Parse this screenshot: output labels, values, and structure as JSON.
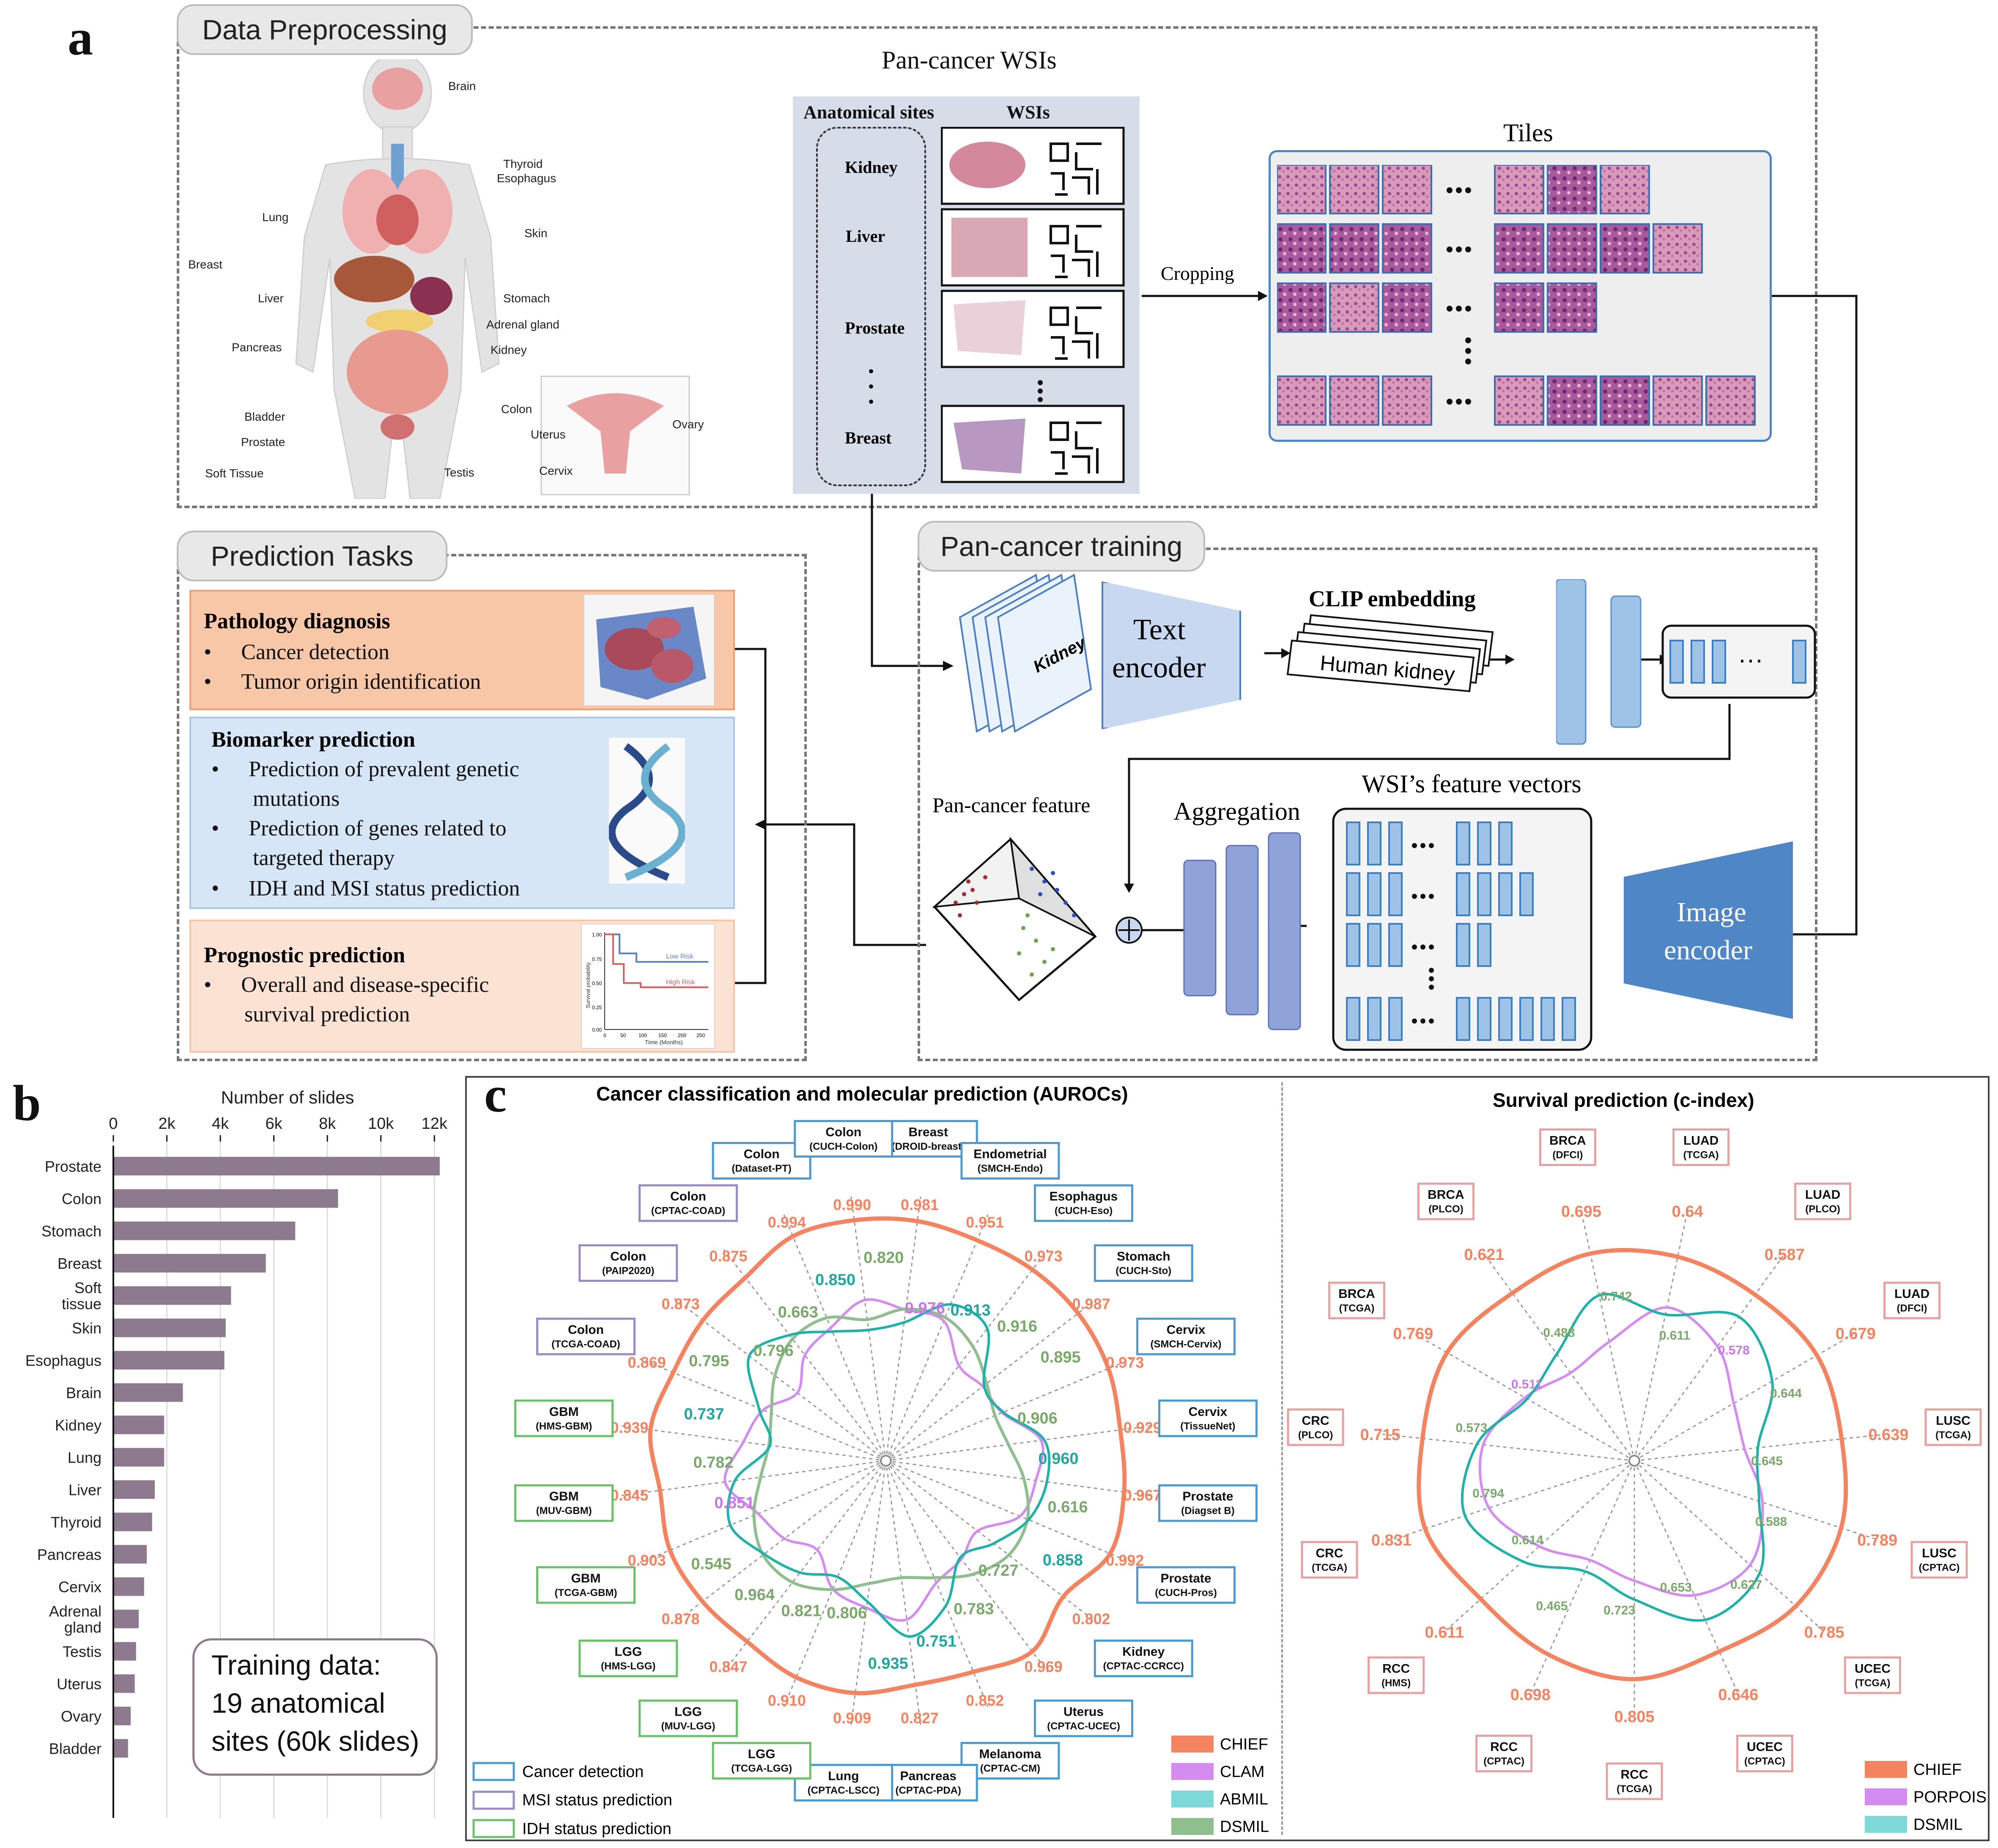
{
  "panel_a": {
    "letter": "a",
    "preprocessing": {
      "tab": "Data Preprocessing",
      "body_labels": [
        "Brain",
        "Thyroid",
        "Esophagus",
        "Lung",
        "Skin",
        "Breast",
        "Stomach",
        "Liver",
        "Adrenal gland",
        "Pancreas",
        "Kidney",
        "Colon",
        "Bladder",
        "Prostate",
        "Testis",
        "Soft Tissue",
        "Uterus",
        "Cervix",
        "Ovary"
      ],
      "pan_cancer_title": "Pan-cancer WSIs",
      "anatomical_sites_header": "Anatomical sites",
      "wsis_header": "WSIs",
      "sites": [
        "Kidney",
        "Liver",
        "Prostate",
        "Breast"
      ],
      "cropping": "Cropping",
      "tiles": "Tiles"
    },
    "prediction": {
      "tab": "Prediction Tasks",
      "pathology": {
        "title": "Pathology diagnosis",
        "items": [
          "Cancer detection",
          "Tumor origin identification"
        ]
      },
      "biomarker": {
        "title": "Biomarker prediction",
        "items": [
          "Prediction of prevalent genetic",
          "mutations",
          "Prediction of genes related to",
          "targeted therapy",
          "IDH and MSI status prediction"
        ]
      },
      "prognostic": {
        "title": "Prognostic prediction",
        "items": [
          "Overall and disease-specific",
          "survival prediction"
        ]
      },
      "km": {
        "low": "Low Risk",
        "high": "High Risk",
        "ylabel": "Survival probability",
        "xlabel": "Time (Months)",
        "yticks": [
          "1.00",
          "0.75",
          "0.50",
          "0.25",
          "0.00"
        ],
        "xticks": [
          "0",
          "50",
          "100",
          "150",
          "200",
          "250"
        ]
      }
    },
    "training": {
      "tab": "Pan-cancer training",
      "kidney_card": "Kidney",
      "text_encoder": [
        "Text",
        "encoder"
      ],
      "clip": "CLIP embedding",
      "human_kidney": "Human kidney",
      "ellipsis": "···",
      "pan_feature": "Pan-cancer feature",
      "aggregation": "Aggregation",
      "wsi_features": "WSI’s feature vectors",
      "image_encoder": [
        "Image",
        "encoder"
      ]
    }
  },
  "panel_b": {
    "letter": "b",
    "chart_data": {
      "type": "bar",
      "orientation": "horizontal",
      "title": "Number of slides",
      "categories": [
        "Prostate",
        "Colon",
        "Stomach",
        "Breast",
        "Soft tissue",
        "Skin",
        "Esophagus",
        "Brain",
        "Kidney",
        "Lung",
        "Liver",
        "Thyroid",
        "Pancreas",
        "Cervix",
        "Adrenal gland",
        "Testis",
        "Uterus",
        "Ovary",
        "Bladder"
      ],
      "values": [
        12200,
        8400,
        6800,
        5700,
        4400,
        4200,
        4150,
        2600,
        1900,
        1900,
        1550,
        1450,
        1250,
        1150,
        950,
        850,
        800,
        650,
        550
      ],
      "xticks": [
        "0",
        "2k",
        "4k",
        "6k",
        "8k",
        "10k",
        "12k"
      ],
      "xlim": [
        0,
        12000
      ],
      "color": "#8e7a8e",
      "note": [
        "Training data:",
        "19 anatomical",
        "sites (60k slides)"
      ]
    }
  },
  "panel_c": {
    "letter": "c",
    "left_title": "Cancer classification and molecular prediction (AUROCs)",
    "right_title": "Survival prediction (c-index)",
    "auroc_chart": {
      "type": "radar",
      "datasets": [
        {
          "name": "Breast",
          "sub": "(DROID-breast)",
          "kind": "cancer",
          "chief": "0.981"
        },
        {
          "name": "Endometrial",
          "sub": "(SMCH-Endo)",
          "kind": "cancer",
          "chief": "0.951"
        },
        {
          "name": "Esophagus",
          "sub": "(CUCH-Eso)",
          "kind": "cancer",
          "chief": "0.973"
        },
        {
          "name": "Stomach",
          "sub": "(CUCH-Sto)",
          "kind": "cancer",
          "chief": "0.987"
        },
        {
          "name": "Cervix",
          "sub": "(SMCH-Cervix)",
          "kind": "cancer",
          "chief": "0.973"
        },
        {
          "name": "Cervix",
          "sub": "(TissueNet)",
          "kind": "cancer",
          "chief": "0.929"
        },
        {
          "name": "Prostate",
          "sub": "(Diagset B)",
          "kind": "cancer",
          "chief": "0.967"
        },
        {
          "name": "Prostate",
          "sub": "(CUCH-Pros)",
          "kind": "cancer",
          "chief": "0.992"
        },
        {
          "name": "Kidney",
          "sub": "(CPTAC-CCRCC)",
          "kind": "cancer",
          "chief": "0.802"
        },
        {
          "name": "Uterus",
          "sub": "(CPTAC-UCEC)",
          "kind": "cancer",
          "chief": "0.969"
        },
        {
          "name": "Melanoma",
          "sub": "(CPTAC-CM)",
          "kind": "cancer",
          "chief": "0.852"
        },
        {
          "name": "Pancreas",
          "sub": "(CPTAC-PDA)",
          "kind": "cancer",
          "chief": "0.827"
        },
        {
          "name": "Lung",
          "sub": "(CPTAC-LSCC)",
          "kind": "cancer",
          "chief": "0.909"
        },
        {
          "name": "LGG",
          "sub": "(TCGA-LGG)",
          "kind": "idh",
          "chief": "0.910"
        },
        {
          "name": "LGG",
          "sub": "(MUV-LGG)",
          "kind": "idh",
          "chief": "0.847"
        },
        {
          "name": "LGG",
          "sub": "(HMS-LGG)",
          "kind": "idh",
          "chief": "0.878"
        },
        {
          "name": "GBM",
          "sub": "(TCGA-GBM)",
          "kind": "idh",
          "chief": "0.903"
        },
        {
          "name": "GBM",
          "sub": "(MUV-GBM)",
          "kind": "idh",
          "chief": "0.845"
        },
        {
          "name": "GBM",
          "sub": "(HMS-GBM)",
          "kind": "idh",
          "chief": "0.939"
        },
        {
          "name": "Colon",
          "sub": "(TCGA-COAD)",
          "kind": "msi",
          "chief": "0.869"
        },
        {
          "name": "Colon",
          "sub": "(PAIP2020)",
          "kind": "msi",
          "chief": "0.873"
        },
        {
          "name": "Colon",
          "sub": "(CPTAC-COAD)",
          "kind": "msi",
          "chief": "0.875"
        },
        {
          "name": "Colon",
          "sub": "(Dataset-PT)",
          "kind": "cancer",
          "chief": "0.994"
        },
        {
          "name": "Colon",
          "sub": "(CUCH-Colon)",
          "kind": "cancer",
          "chief": "0.990"
        }
      ],
      "other_labels": [
        {
          "text": "0.976",
          "series": "CLAM"
        },
        {
          "text": "0.913",
          "series": "ABMIL"
        },
        {
          "text": "0.916",
          "series": "DSMIL"
        },
        {
          "text": "0.895",
          "series": "DSMIL"
        },
        {
          "text": "0.906",
          "series": "DSMIL"
        },
        {
          "text": "0.960",
          "series": "ABMIL"
        },
        {
          "text": "0.616",
          "series": "DSMIL"
        },
        {
          "text": "0.858",
          "series": "ABMIL"
        },
        {
          "text": "0.727",
          "series": "DSMIL"
        },
        {
          "text": "0.783",
          "series": "DSMIL"
        },
        {
          "text": "0.751",
          "series": "ABMIL"
        },
        {
          "text": "0.935",
          "series": "ABMIL"
        },
        {
          "text": "0.806",
          "series": "DSMIL"
        },
        {
          "text": "0.821",
          "series": "DSMIL"
        },
        {
          "text": "0.964",
          "series": "DSMIL"
        },
        {
          "text": "0.545",
          "series": "DSMIL"
        },
        {
          "text": "0.851",
          "series": "CLAM"
        },
        {
          "text": "0.782",
          "series": "DSMIL"
        },
        {
          "text": "0.737",
          "series": "ABMIL"
        },
        {
          "text": "0.795",
          "series": "DSMIL"
        },
        {
          "text": "0.796",
          "series": "DSMIL"
        },
        {
          "text": "0.663",
          "series": "DSMIL"
        },
        {
          "text": "0.850",
          "series": "ABMIL"
        },
        {
          "text": "0.820",
          "series": "DSMIL"
        }
      ],
      "legend_tasks": [
        "Cancer detection",
        "MSI status prediction",
        "IDH status prediction"
      ],
      "legend_models": [
        "CHIEF",
        "CLAM",
        "ABMIL",
        "DSMIL"
      ]
    },
    "cindex_chart": {
      "type": "radar",
      "datasets": [
        {
          "name": "LUAD",
          "sub": "(TCGA)",
          "chief": "0.64"
        },
        {
          "name": "LUAD",
          "sub": "(PLCO)",
          "chief": "0.587"
        },
        {
          "name": "LUAD",
          "sub": "(DFCI)",
          "chief": "0.679"
        },
        {
          "name": "LUSC",
          "sub": "(TCGA)",
          "chief": "0.639"
        },
        {
          "name": "LUSC",
          "sub": "(CPTAC)",
          "chief": "0.789"
        },
        {
          "name": "UCEC",
          "sub": "(TCGA)",
          "chief": "0.785"
        },
        {
          "name": "UCEC",
          "sub": "(CPTAC)",
          "chief": "0.646"
        },
        {
          "name": "RCC",
          "sub": "(TCGA)",
          "chief": "0.805"
        },
        {
          "name": "RCC",
          "sub": "(CPTAC)",
          "chief": "0.698"
        },
        {
          "name": "RCC",
          "sub": "(HMS)",
          "chief": "0.611"
        },
        {
          "name": "CRC",
          "sub": "(TCGA)",
          "chief": "0.831"
        },
        {
          "name": "CRC",
          "sub": "(PLCO)",
          "chief": "0.715"
        },
        {
          "name": "BRCA",
          "sub": "(TCGA)",
          "chief": "0.769"
        },
        {
          "name": "BRCA",
          "sub": "(PLCO)",
          "chief": "0.621"
        },
        {
          "name": "BRCA",
          "sub": "(DFCI)",
          "chief": "0.695"
        }
      ],
      "other_labels": [
        {
          "text": "0.611",
          "series": "DSMIL"
        },
        {
          "text": "0.578",
          "series": "PORPOISE"
        },
        {
          "text": "0.644",
          "series": "DSMIL"
        },
        {
          "text": "0.645",
          "series": "DSMIL"
        },
        {
          "text": "0.588",
          "series": "DSMIL"
        },
        {
          "text": "0.627",
          "series": "DSMIL"
        },
        {
          "text": "0.653",
          "series": "DSMIL"
        },
        {
          "text": "0.723",
          "series": "DSMIL"
        },
        {
          "text": "0.465",
          "series": "DSMIL"
        },
        {
          "text": "0.614",
          "series": "DSMIL"
        },
        {
          "text": "0.794",
          "series": "DSMIL"
        },
        {
          "text": "0.573",
          "series": "DSMIL"
        },
        {
          "text": "0.511",
          "series": "PORPOISE"
        },
        {
          "text": "0.488",
          "series": "DSMIL"
        },
        {
          "text": "0.742",
          "series": "DSMIL"
        }
      ],
      "legend_models": [
        "CHIEF",
        "PORPOISE",
        "DSMIL"
      ]
    },
    "colors": {
      "chief": "#f4845f",
      "clam": "#d58cf0",
      "abmil": "#20b2aa",
      "dsmil": "#8fbf8f",
      "porpoise": "#d58cf0",
      "cancer": "#4a9ad4",
      "msi": "#9b8ac4",
      "idh": "#6cc06c",
      "surv_box": "#e8a0a0"
    }
  }
}
